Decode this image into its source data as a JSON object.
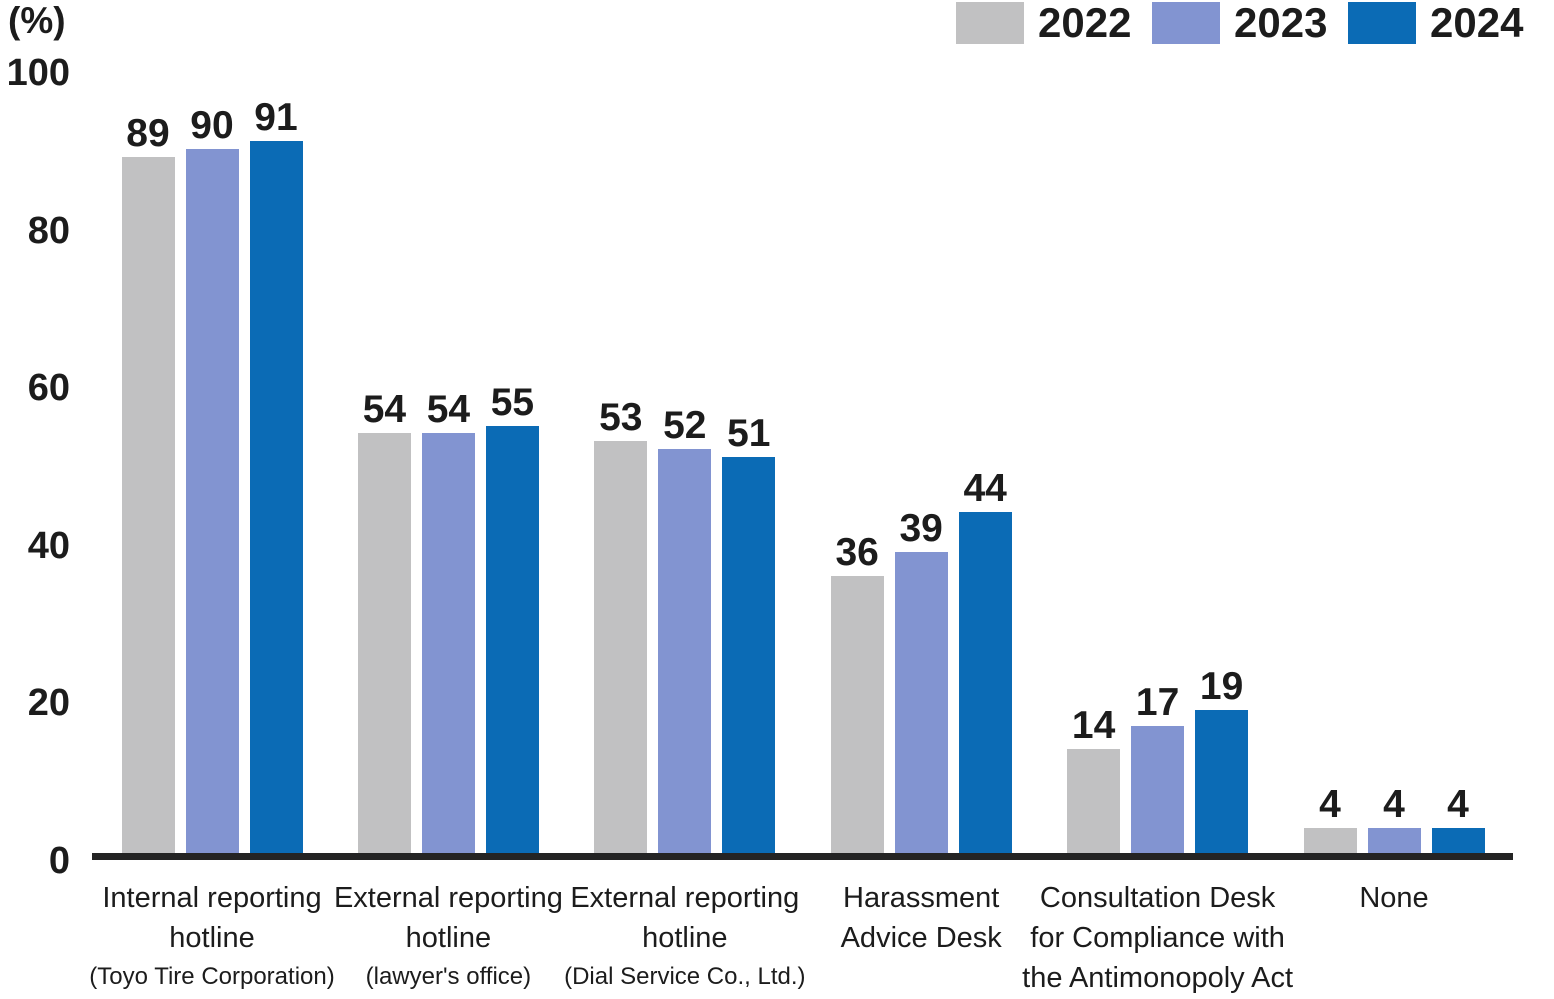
{
  "chart_data": {
    "type": "bar",
    "unit_label": "(%)",
    "title": "",
    "xlabel": "",
    "ylabel": "(%)",
    "ylim": [
      0,
      100
    ],
    "yticks": [
      0,
      20,
      40,
      60,
      80,
      100
    ],
    "grid": false,
    "legend_position": "top-right",
    "axis_color": "#242424",
    "text_color": "#1c1c1c",
    "categories": [
      {
        "lines": [
          "Internal reporting",
          "hotline"
        ],
        "sub": "(Toyo Tire Corporation)"
      },
      {
        "lines": [
          "External reporting",
          "hotline"
        ],
        "sub": "(lawyer's office)"
      },
      {
        "lines": [
          "External reporting",
          "hotline"
        ],
        "sub": "(Dial Service Co., Ltd.)"
      },
      {
        "lines": [
          "Harassment",
          "Advice Desk"
        ],
        "sub": ""
      },
      {
        "lines": [
          "Consultation Desk",
          "for Compliance with",
          "the Antimonopoly Act"
        ],
        "sub": ""
      },
      {
        "lines": [
          "None"
        ],
        "sub": ""
      }
    ],
    "series": [
      {
        "name": "2022",
        "color": "#c1c1c2",
        "values": [
          89,
          54,
          53,
          36,
          14,
          4
        ]
      },
      {
        "name": "2023",
        "color": "#8294d1",
        "values": [
          90,
          54,
          52,
          39,
          17,
          4
        ]
      },
      {
        "name": "2024",
        "color": "#0b6bb5",
        "values": [
          91,
          55,
          51,
          44,
          19,
          4
        ]
      }
    ]
  }
}
